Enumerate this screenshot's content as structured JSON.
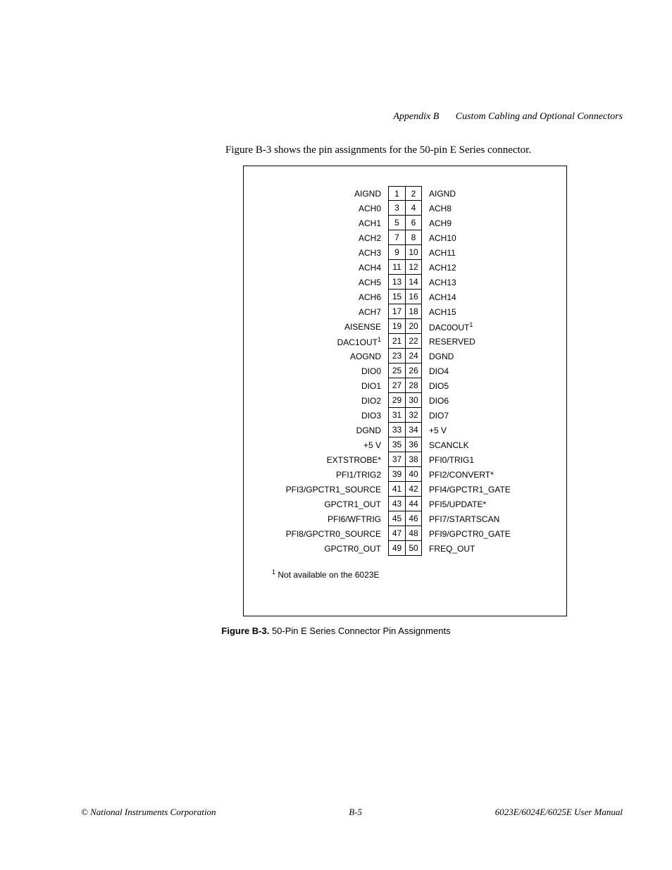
{
  "header": {
    "appendix": "Appendix B",
    "title": "Custom Cabling and Optional Connectors"
  },
  "intro": "Figure B-3 shows the pin assignments for the 50-pin E Series connector.",
  "pins": [
    {
      "l": "AIGND",
      "n1": "1",
      "n2": "2",
      "r": "AIGND"
    },
    {
      "l": "ACH0",
      "n1": "3",
      "n2": "4",
      "r": "ACH8"
    },
    {
      "l": "ACH1",
      "n1": "5",
      "n2": "6",
      "r": "ACH9"
    },
    {
      "l": "ACH2",
      "n1": "7",
      "n2": "8",
      "r": "ACH10"
    },
    {
      "l": "ACH3",
      "n1": "9",
      "n2": "10",
      "r": "ACH11"
    },
    {
      "l": "ACH4",
      "n1": "11",
      "n2": "12",
      "r": "ACH12"
    },
    {
      "l": "ACH5",
      "n1": "13",
      "n2": "14",
      "r": "ACH13"
    },
    {
      "l": "ACH6",
      "n1": "15",
      "n2": "16",
      "r": "ACH14"
    },
    {
      "l": "ACH7",
      "n1": "17",
      "n2": "18",
      "r": "ACH15"
    },
    {
      "l": "AISENSE",
      "n1": "19",
      "n2": "20",
      "r": "DAC0OUT",
      "rsup": "1"
    },
    {
      "l": "DAC1OUT",
      "lsup": "1",
      "n1": "21",
      "n2": "22",
      "r": "RESERVED"
    },
    {
      "l": "AOGND",
      "n1": "23",
      "n2": "24",
      "r": "DGND"
    },
    {
      "l": "DIO0",
      "n1": "25",
      "n2": "26",
      "r": "DIO4"
    },
    {
      "l": "DIO1",
      "n1": "27",
      "n2": "28",
      "r": "DIO5"
    },
    {
      "l": "DIO2",
      "n1": "29",
      "n2": "30",
      "r": "DIO6"
    },
    {
      "l": "DIO3",
      "n1": "31",
      "n2": "32",
      "r": "DIO7"
    },
    {
      "l": "DGND",
      "n1": "33",
      "n2": "34",
      "r": "+5 V"
    },
    {
      "l": "+5 V",
      "n1": "35",
      "n2": "36",
      "r": "SCANCLK"
    },
    {
      "l": "EXTSTROBE*",
      "n1": "37",
      "n2": "38",
      "r": "PFI0/TRIG1"
    },
    {
      "l": "PFI1/TRIG2",
      "n1": "39",
      "n2": "40",
      "r": "PFI2/CONVERT*"
    },
    {
      "l": "PFI3/GPCTR1_SOURCE",
      "n1": "41",
      "n2": "42",
      "r": "PFI4/GPCTR1_GATE"
    },
    {
      "l": "GPCTR1_OUT",
      "n1": "43",
      "n2": "44",
      "r": "PFI5/UPDATE*"
    },
    {
      "l": "PFI6/WFTRIG",
      "n1": "45",
      "n2": "46",
      "r": "PFI7/STARTSCAN"
    },
    {
      "l": "PFI8/GPCTR0_SOURCE",
      "n1": "47",
      "n2": "48",
      "r": "PFI9/GPCTR0_GATE"
    },
    {
      "l": "GPCTR0_OUT",
      "n1": "49",
      "n2": "50",
      "r": "FREQ_OUT"
    }
  ],
  "footnote_sup": "1",
  "footnote_text": " Not available on the 6023E",
  "caption_label": "Figure B-3.  ",
  "caption_text": "50-Pin E Series Connector Pin Assignments",
  "footer": {
    "left": "© National Instruments Corporation",
    "center": "B-5",
    "right": "6023E/6024E/6025E User Manual"
  }
}
